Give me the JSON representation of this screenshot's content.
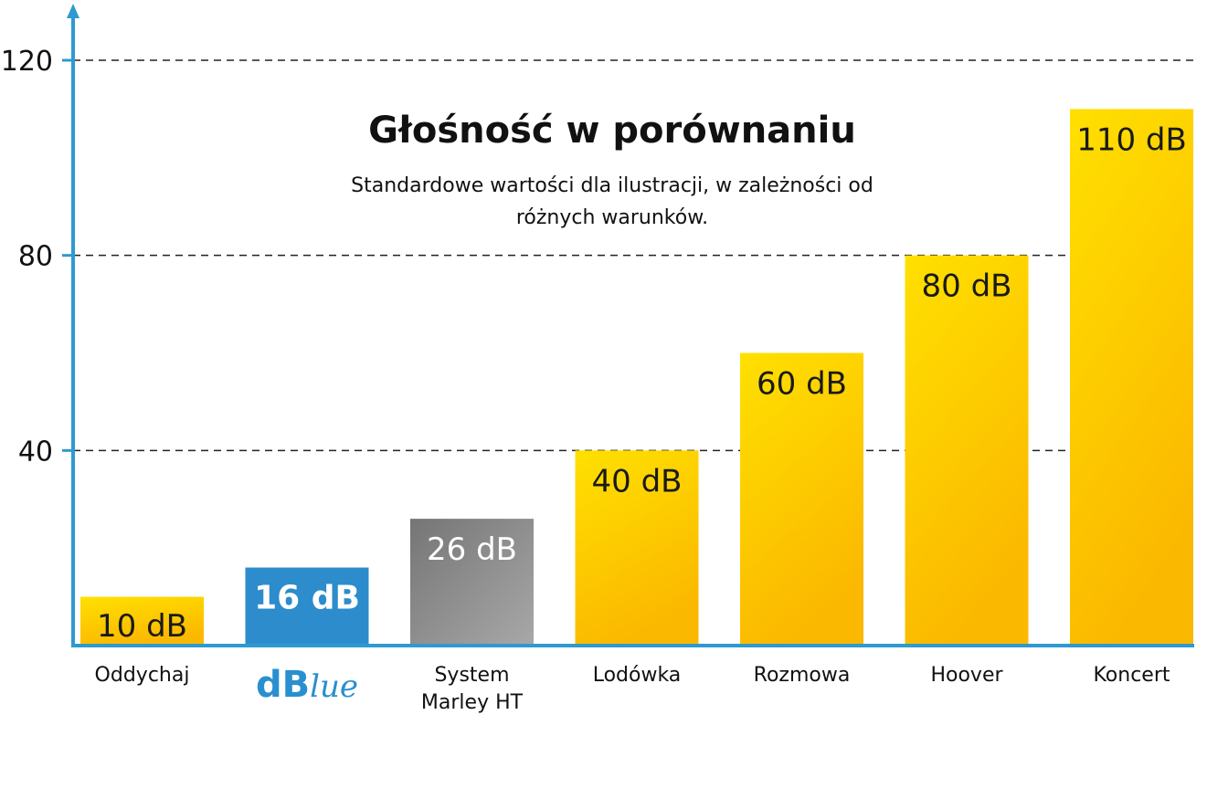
{
  "chart_data": {
    "type": "bar",
    "title": "Głośność w porównaniu",
    "subtitle_lines": [
      "Standardowe wartości dla ilustracji, w zależności od",
      "różnych warunków."
    ],
    "categories": [
      "Oddychaj",
      "dBlue",
      "System Marley HT",
      "Lodówka",
      "Rozmowa",
      "Hoover",
      "Koncert"
    ],
    "category_label_lines": [
      [
        "Oddychaj"
      ],
      [],
      [
        "System",
        "Marley HT"
      ],
      [
        "Lodówka"
      ],
      [
        "Rozmowa"
      ],
      [
        "Hoover"
      ],
      [
        "Koncert"
      ]
    ],
    "values": [
      10,
      16,
      26,
      40,
      60,
      80,
      110
    ],
    "value_labels": [
      "10 dB",
      "16 dB",
      "26 dB",
      "40 dB",
      "60 dB",
      "80 dB",
      "110 dB"
    ],
    "bar_styles": [
      "yellow",
      "blue",
      "gray",
      "yellow",
      "yellow",
      "yellow",
      "yellow"
    ],
    "logo": {
      "category_index": 1,
      "text": "dBlue"
    },
    "y_ticks": [
      40,
      80,
      120
    ],
    "ylim": [
      0,
      130
    ],
    "grid": "dashed horizontal at ticks",
    "colors": {
      "axis": "#2e9ad0",
      "yellow_top": "#ffe000",
      "yellow_bottom": "#fbb800",
      "blue": "#2d8ccb",
      "gray_top": "#757575",
      "gray_bottom": "#a6a6a6",
      "grid": "#222222"
    }
  }
}
